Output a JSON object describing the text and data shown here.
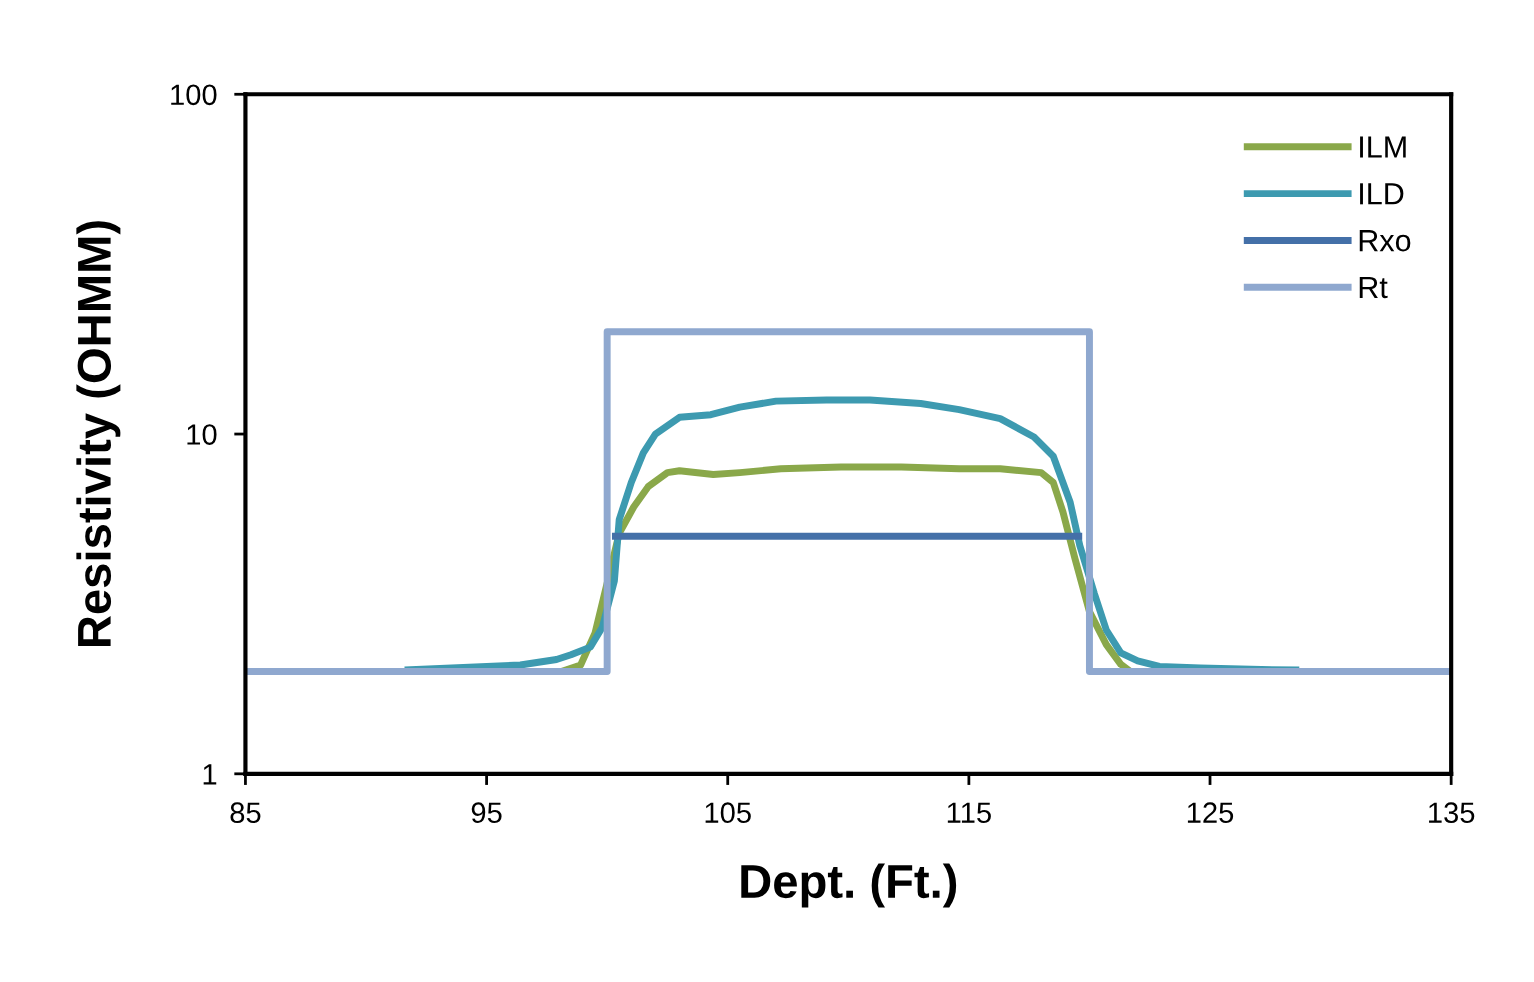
{
  "chart_data": {
    "type": "line",
    "xlabel": "Dept. (Ft.)",
    "ylabel": "Resistivity (OHMM)",
    "xlim": [
      85,
      135
    ],
    "xticks": [
      85,
      95,
      105,
      115,
      125,
      135
    ],
    "ylim": [
      1,
      100
    ],
    "yticks": [
      1,
      10,
      100
    ],
    "log": "y",
    "grid": false,
    "legend": "top right",
    "marker": "none",
    "line_style": "solid",
    "series": [
      {
        "name": "ILM",
        "color": "#8aa84a",
        "x": [
          98.1,
          98.9,
          99.5,
          100.5,
          101.1,
          101.7,
          102.5,
          103.0,
          104.4,
          105.5,
          107.2,
          109.7,
          112.2,
          114.6,
          116.3,
          118.0,
          118.5,
          118.9,
          119.4,
          120.0,
          120.7,
          121.3,
          121.7
        ],
        "values": [
          2.0,
          2.09,
          2.6,
          5.1,
          6.1,
          7.0,
          7.7,
          7.8,
          7.6,
          7.7,
          7.9,
          8.0,
          8.0,
          7.9,
          7.9,
          7.7,
          7.2,
          5.9,
          4.3,
          3.0,
          2.4,
          2.1,
          2.0
        ]
      },
      {
        "name": "ILD",
        "color": "#3d9ab0",
        "x": [
          91.6,
          96.4,
          97.9,
          98.5,
          99.3,
          99.8,
          100.3,
          100.5,
          101.0,
          101.5,
          102.0,
          103.0,
          104.3,
          105.5,
          107.0,
          109.1,
          110.9,
          113.0,
          114.6,
          116.3,
          117.7,
          118.5,
          119.2,
          119.6,
          120.2,
          120.7,
          121.3,
          122.0,
          122.9,
          124.6,
          126.7,
          128.7
        ],
        "values": [
          2.02,
          2.09,
          2.17,
          2.24,
          2.36,
          2.7,
          3.7,
          5.6,
          7.2,
          8.8,
          10.0,
          11.2,
          11.4,
          12.0,
          12.5,
          12.6,
          12.6,
          12.3,
          11.8,
          11.1,
          9.8,
          8.6,
          6.3,
          4.7,
          3.4,
          2.65,
          2.27,
          2.15,
          2.07,
          2.05,
          2.03,
          2.02
        ]
      },
      {
        "name": "Rxo",
        "color": "#4470a8",
        "x": [
          100.2,
          119.7
        ],
        "values": [
          5,
          5
        ]
      },
      {
        "name": "Rt",
        "color": "#8fa8cf",
        "x": [
          85,
          100,
          100,
          120,
          120,
          135
        ],
        "values": [
          2,
          2,
          20,
          20,
          2,
          2
        ]
      }
    ]
  }
}
